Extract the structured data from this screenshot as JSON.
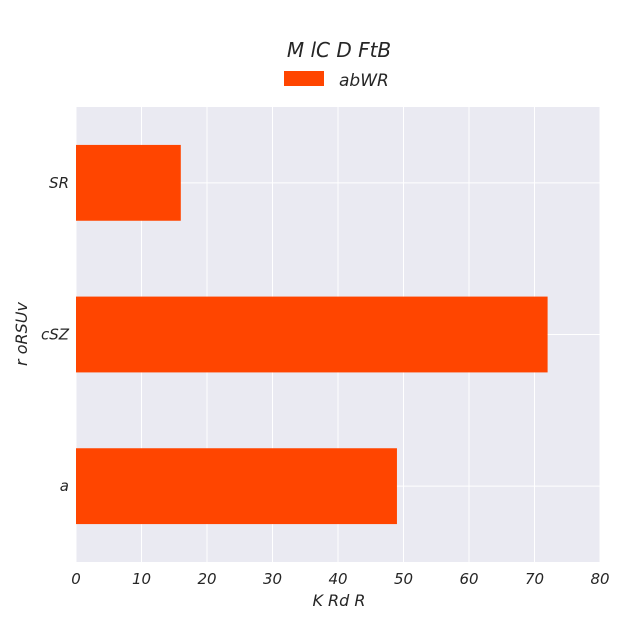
{
  "chart_data": {
    "type": "bar",
    "orientation": "horizontal",
    "title": "M lC D FtB",
    "xlabel": "K Rd R",
    "ylabel": "r oRSUv",
    "categories": [
      "a",
      "cSZ",
      "SR"
    ],
    "series": [
      {
        "name": "abWR",
        "values": [
          49,
          72,
          16
        ],
        "color": "#FF4500"
      }
    ],
    "xlim": [
      0,
      80
    ],
    "xticks": [
      0,
      10,
      20,
      30,
      40,
      50,
      60,
      70,
      80
    ],
    "grid": true,
    "legend": "top-center"
  }
}
